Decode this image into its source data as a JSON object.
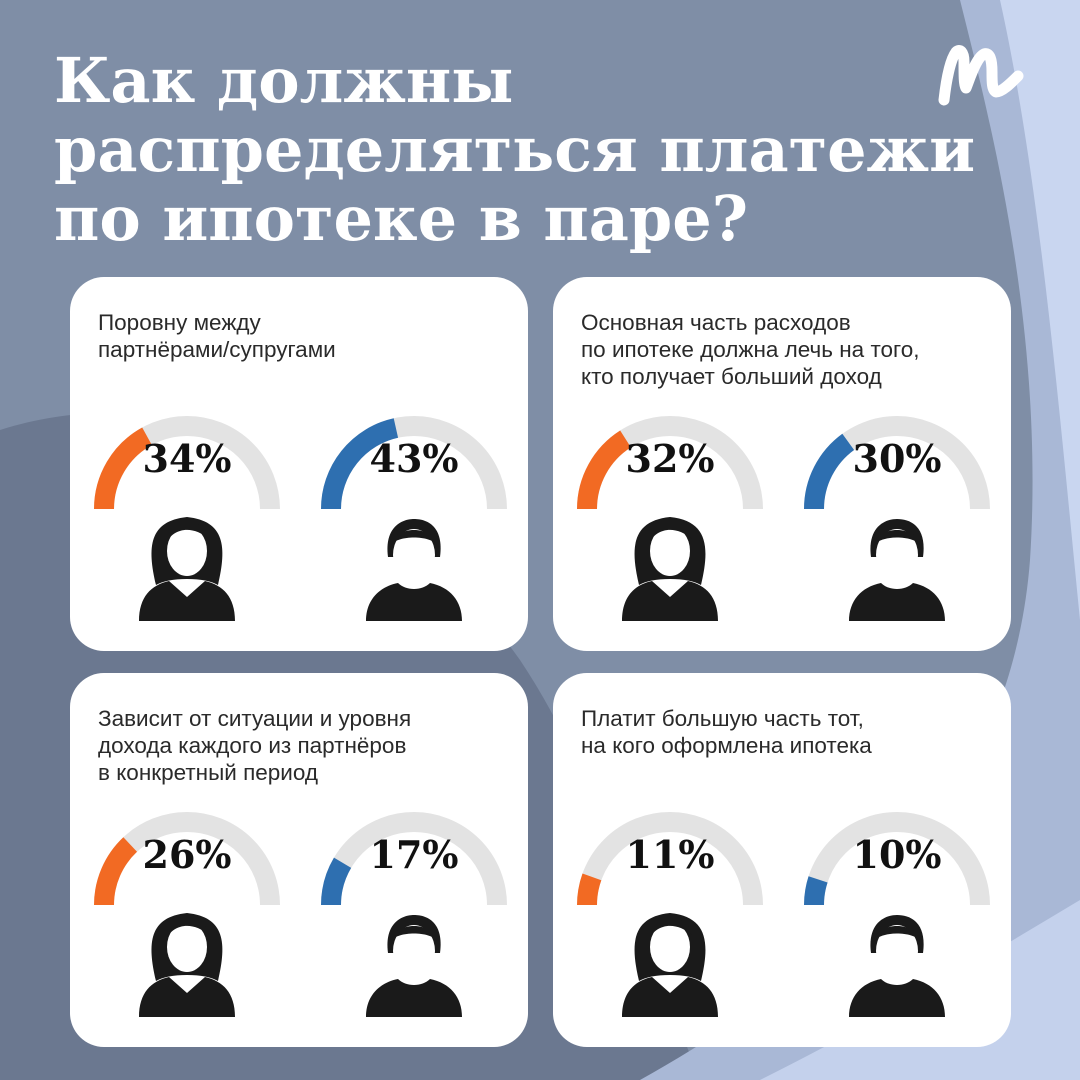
{
  "title_lines": [
    "Как должны",
    "распределяться платежи",
    "по ипотеке в паре?"
  ],
  "colors": {
    "background": "#7f8ea6",
    "women_arc": "#f26a23",
    "men_arc": "#2e6fb0",
    "track": "#e3e3e3",
    "silhouette": "#1a1a1a"
  },
  "icons": [
    "logo-m-icon",
    "woman-silhouette-icon",
    "man-silhouette-icon"
  ],
  "chart_data": {
    "type": "gauge",
    "unit": "%",
    "series_colors": {
      "women": "#f26a23",
      "men": "#2e6fb0"
    },
    "items": [
      {
        "label_lines": [
          "Поровну между",
          "партнёрами/супругами"
        ],
        "women": 34,
        "men": 43,
        "women_text": "34%",
        "men_text": "43%"
      },
      {
        "label_lines": [
          "Основная часть расходов",
          "по ипотеке должна лечь на того,",
          "кто получает больший доход"
        ],
        "women": 32,
        "men": 30,
        "women_text": "32%",
        "men_text": "30%"
      },
      {
        "label_lines": [
          "Зависит от ситуации и уровня",
          "дохода каждого из партнёров",
          "в конкретный период"
        ],
        "women": 26,
        "men": 17,
        "women_text": "26%",
        "men_text": "17%"
      },
      {
        "label_lines": [
          "Платит большую часть тот,",
          "на кого оформлена ипотека"
        ],
        "women": 11,
        "men": 10,
        "women_text": "11%",
        "men_text": "10%"
      }
    ]
  }
}
